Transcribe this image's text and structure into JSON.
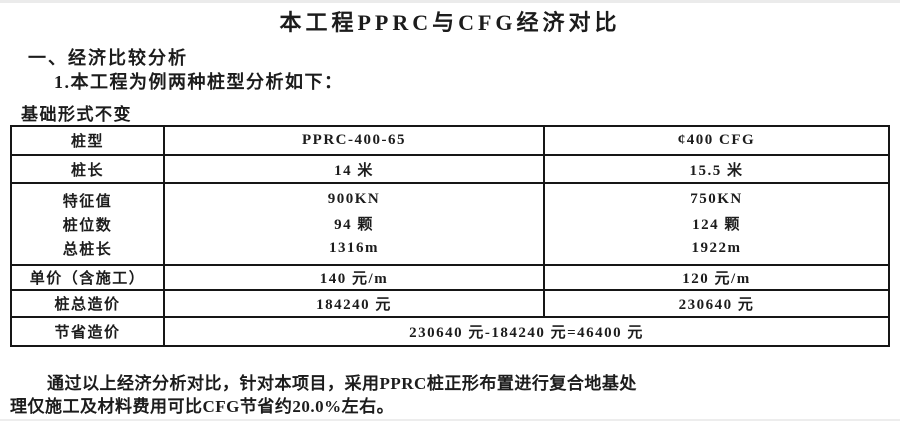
{
  "doc": {
    "title": "本工程PPRC与CFG经济对比",
    "section_heading": "一、经济比较分析",
    "subsection_heading": "1.本工程为例两种桩型分析如下：",
    "table_caption": "基础形式不变",
    "footer_line1": "通过以上经济分析对比，针对本项目，采用PPRC桩正形布置进行复合地基处",
    "footer_line2": "理仅施工及材料费用可比CFG节省约20.0%左右。"
  },
  "table": {
    "rows": [
      {
        "label": "桩型",
        "pprc": "PPRC-400-65",
        "cfg": "¢400 CFG"
      },
      {
        "label": "桩长",
        "pprc": "14 米",
        "cfg": "15.5 米"
      },
      {
        "label": "特征值",
        "pprc": "900KN",
        "cfg": "750KN"
      },
      {
        "label": "桩位数",
        "pprc": "94 颗",
        "cfg": "124 颗"
      },
      {
        "label": "总桩长",
        "pprc": "1316m",
        "cfg": "1922m"
      },
      {
        "label": "单价（含施工）",
        "pprc": "140 元/m",
        "cfg": "120 元/m"
      },
      {
        "label": "桩总造价",
        "pprc": "184240 元",
        "cfg": "230640 元"
      },
      {
        "label": "节省造价",
        "value": "230640 元-184240 元=46400 元"
      }
    ]
  },
  "colors": {
    "text": "#1c1c1c",
    "border": "#161616",
    "background": "#ffffff"
  }
}
